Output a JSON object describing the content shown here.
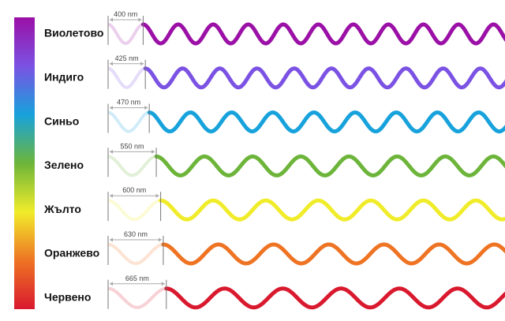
{
  "bands": [
    {
      "name": "Виолетово",
      "wavelength": {
        "value": 400,
        "label": "400 nm"
      },
      "color": "#9b10a6"
    },
    {
      "name": "Индиго",
      "wavelength": {
        "value": 425,
        "label": "425 nm"
      },
      "color": "#7b52e3"
    },
    {
      "name": "Синьо",
      "wavelength": {
        "value": 470,
        "label": "470 nm"
      },
      "color": "#17a2dc"
    },
    {
      "name": "Зелено",
      "wavelength": {
        "value": 550,
        "label": "550 nm"
      },
      "color": "#6db53a"
    },
    {
      "name": "Жълто",
      "wavelength": {
        "value": 600,
        "label": "600 nm"
      },
      "color": "#f0ec2a"
    },
    {
      "name": "Оранжево",
      "wavelength": {
        "value": 630,
        "label": "630 nm"
      },
      "color": "#ee7424"
    },
    {
      "name": "Червено",
      "wavelength": {
        "value": 665,
        "label": "665 nm"
      },
      "color": "#d9192e"
    }
  ]
}
